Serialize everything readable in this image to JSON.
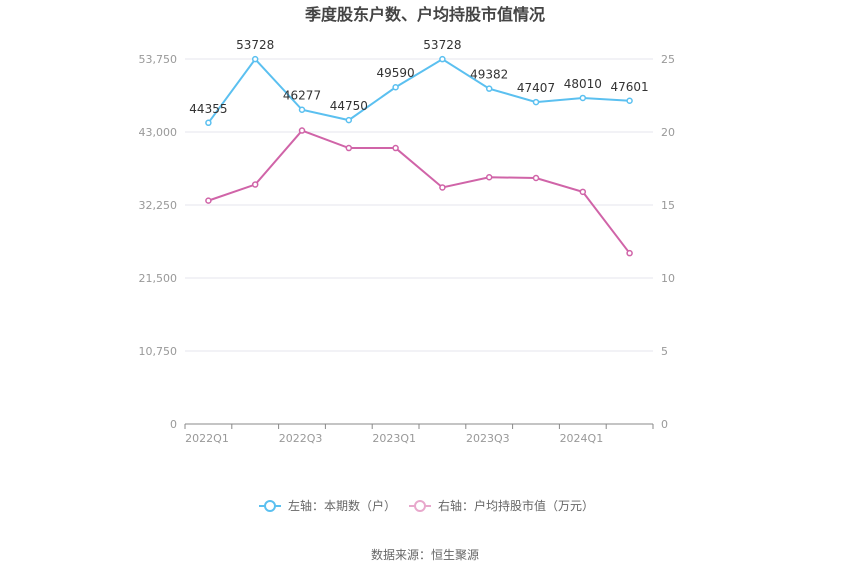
{
  "chart_data": {
    "type": "line",
    "title": "季度股东户数、户均持股市值情况",
    "categories": [
      "2022Q1",
      "2022Q2",
      "2022Q3",
      "2022Q4",
      "2023Q1",
      "2023Q2",
      "2023Q3",
      "2023Q4",
      "2024Q1",
      "2024Q2"
    ],
    "x_tick_labels": [
      "2022Q1",
      "2022Q3",
      "2023Q1",
      "2023Q3",
      "2024Q1"
    ],
    "left_axis": {
      "ticks": [
        "0",
        "10,750",
        "21,500",
        "32,250",
        "43,000",
        "53,750"
      ],
      "ylim": [
        0,
        53750
      ]
    },
    "right_axis": {
      "ticks": [
        "0",
        "5",
        "10",
        "15",
        "20",
        "25"
      ],
      "ylim": [
        0,
        25
      ]
    },
    "series": [
      {
        "name": "左轴：本期数（户）",
        "axis": "left",
        "color": "#5bc0f0",
        "values": [
          44355,
          53728,
          46277,
          44750,
          49590,
          53728,
          49382,
          47407,
          48010,
          47601
        ],
        "labels": [
          "44355",
          "53728",
          "46277",
          "44750",
          "49590",
          "53728",
          "49382",
          "47407",
          "48010",
          "47601"
        ]
      },
      {
        "name": "右轴：户均持股市值（万元）",
        "axis": "right",
        "color": "#d064a8",
        "values": [
          15.3,
          16.4,
          20.1,
          18.9,
          18.9,
          16.2,
          16.9,
          16.85,
          15.9,
          11.7
        ]
      }
    ],
    "grid": true,
    "legend_position": "bottom"
  },
  "source": "数据来源：恒生聚源"
}
